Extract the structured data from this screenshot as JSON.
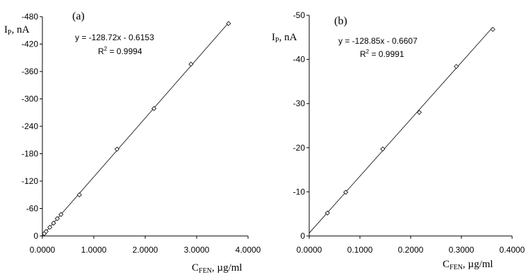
{
  "chart_data": [
    {
      "type": "scatter",
      "panel_label": "(a)",
      "ylabel_main": "I",
      "ylabel_sub": "P",
      "ylabel_unit": ", nA",
      "xlabel_main": "C",
      "xlabel_sub": "FEN",
      "xlabel_unit": ", µg/ml",
      "equation": "y = -128.72x - 0.6153",
      "r2_prefix": "R",
      "r2_sup": "2",
      "r2_value": " = 0.9994",
      "xlim": [
        0,
        4
      ],
      "ylim": [
        0,
        -480
      ],
      "xticks": [
        0,
        1,
        2,
        3,
        4
      ],
      "xtick_labels": [
        "0.0000",
        "1.0000",
        "2.0000",
        "3.0000",
        "4.0000"
      ],
      "yticks": [
        0,
        -60,
        -120,
        -180,
        -240,
        -300,
        -360,
        -420,
        -480
      ],
      "ytick_labels": [
        "0",
        "-60",
        "-120",
        "-180",
        "-240",
        "-300",
        "-360",
        "-420",
        "-480"
      ],
      "fit": {
        "slope": -128.72,
        "intercept": -0.6153,
        "x_range": [
          0,
          3.62
        ]
      },
      "points": [
        {
          "x": 0.036,
          "y": -5
        },
        {
          "x": 0.072,
          "y": -9.9
        },
        {
          "x": 0.145,
          "y": -19
        },
        {
          "x": 0.217,
          "y": -28
        },
        {
          "x": 0.29,
          "y": -38
        },
        {
          "x": 0.362,
          "y": -47
        },
        {
          "x": 0.72,
          "y": -90
        },
        {
          "x": 1.45,
          "y": -190
        },
        {
          "x": 2.17,
          "y": -279
        },
        {
          "x": 2.89,
          "y": -376
        },
        {
          "x": 3.62,
          "y": -465
        }
      ],
      "grid": false
    },
    {
      "type": "scatter",
      "panel_label": "(b)",
      "ylabel_main": "I",
      "ylabel_sub": "P",
      "ylabel_unit": ", nA",
      "xlabel_main": "C",
      "xlabel_sub": "FEN",
      "xlabel_unit": ", µg/ml",
      "equation": "y = -128.85x - 0.6607",
      "r2_prefix": "R",
      "r2_sup": "2",
      "r2_value": " = 0.9991",
      "xlim": [
        0,
        0.4
      ],
      "ylim": [
        0,
        -50
      ],
      "xticks": [
        0,
        0.1,
        0.2,
        0.3,
        0.4
      ],
      "xtick_labels": [
        "0.0000",
        "0.1000",
        "0.2000",
        "0.3000",
        "0.4000"
      ],
      "yticks": [
        0,
        -10,
        -20,
        -30,
        -40,
        -50
      ],
      "ytick_labels": [
        "0",
        "-10",
        "-20",
        "-30",
        "-40",
        "-50"
      ],
      "fit": {
        "slope": -128.85,
        "intercept": -0.6607,
        "x_range": [
          0,
          0.362
        ]
      },
      "points": [
        {
          "x": 0.036,
          "y": -5.2
        },
        {
          "x": 0.072,
          "y": -9.9
        },
        {
          "x": 0.145,
          "y": -19.7
        },
        {
          "x": 0.217,
          "y": -28.0
        },
        {
          "x": 0.29,
          "y": -38.4
        },
        {
          "x": 0.362,
          "y": -46.8
        }
      ],
      "grid": false
    }
  ]
}
